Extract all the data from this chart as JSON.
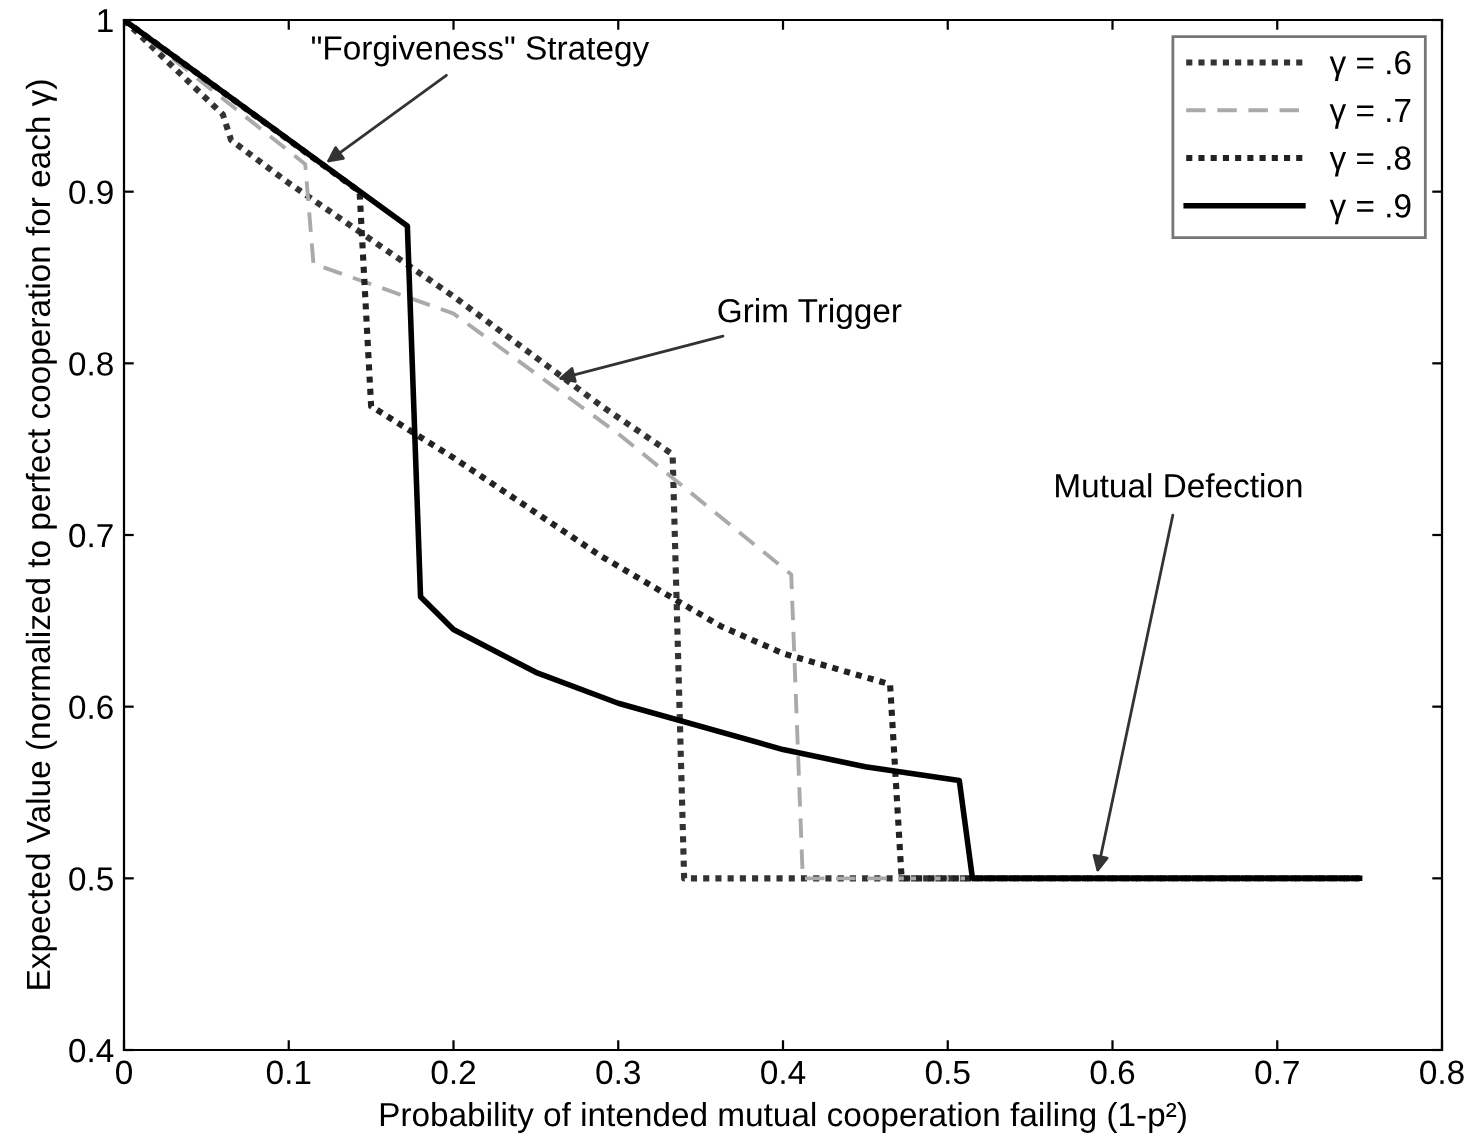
{
  "chart_data": {
    "type": "line",
    "xlabel": "Probability of intended mutual cooperation failing (1-p²)",
    "ylabel": "Expected Value (normalized to perfect cooperation for each γ)",
    "xlim": [
      0,
      0.8
    ],
    "ylim": [
      0.4,
      1
    ],
    "xticks": [
      0,
      0.1,
      0.2,
      0.3,
      0.4,
      0.5,
      0.6,
      0.7,
      0.8
    ],
    "yticks": [
      0.4,
      0.5,
      0.6,
      0.7,
      0.8,
      0.9,
      1
    ],
    "grid": false,
    "legend": "top right",
    "marker": "none",
    "series": [
      {
        "name": "γ = .6",
        "color": "#333333",
        "line_style": "dotted",
        "x": [
          0,
          0.06,
          0.065,
          0.1,
          0.2,
          0.29,
          0.333,
          0.34,
          0.75
        ],
        "values": [
          1,
          0.945,
          0.93,
          0.905,
          0.839,
          0.775,
          0.747,
          0.5,
          0.5
        ]
      },
      {
        "name": "γ = .7",
        "color": "#aaaaaa",
        "line_style": "dashed",
        "x": [
          0,
          0.11,
          0.115,
          0.2,
          0.3,
          0.405,
          0.412,
          0.75
        ],
        "values": [
          1,
          0.916,
          0.858,
          0.829,
          0.759,
          0.677,
          0.5,
          0.5
        ]
      },
      {
        "name": "γ = .8",
        "color": "#222222",
        "line_style": "dotted",
        "x": [
          0,
          0.143,
          0.15,
          0.2,
          0.289,
          0.362,
          0.4,
          0.465,
          0.472,
          0.75
        ],
        "values": [
          1,
          0.9,
          0.775,
          0.745,
          0.688,
          0.647,
          0.631,
          0.613,
          0.5,
          0.5
        ]
      },
      {
        "name": "γ = .9",
        "color": "#000000",
        "line_style": "solid",
        "x": [
          0,
          0.172,
          0.18,
          0.2,
          0.25,
          0.3,
          0.4,
          0.45,
          0.507,
          0.515,
          0.75
        ],
        "values": [
          1,
          0.88,
          0.664,
          0.645,
          0.62,
          0.602,
          0.575,
          0.565,
          0.557,
          0.5,
          0.5
        ]
      }
    ],
    "annotations": [
      {
        "text": "\"Forgiveness\" Strategy",
        "x": 0.12,
        "y": 0.915
      },
      {
        "text": "Grim Trigger",
        "x": 0.26,
        "y": 0.79
      },
      {
        "text": "Mutual Defection",
        "x": 0.59,
        "y": 0.5
      }
    ]
  }
}
